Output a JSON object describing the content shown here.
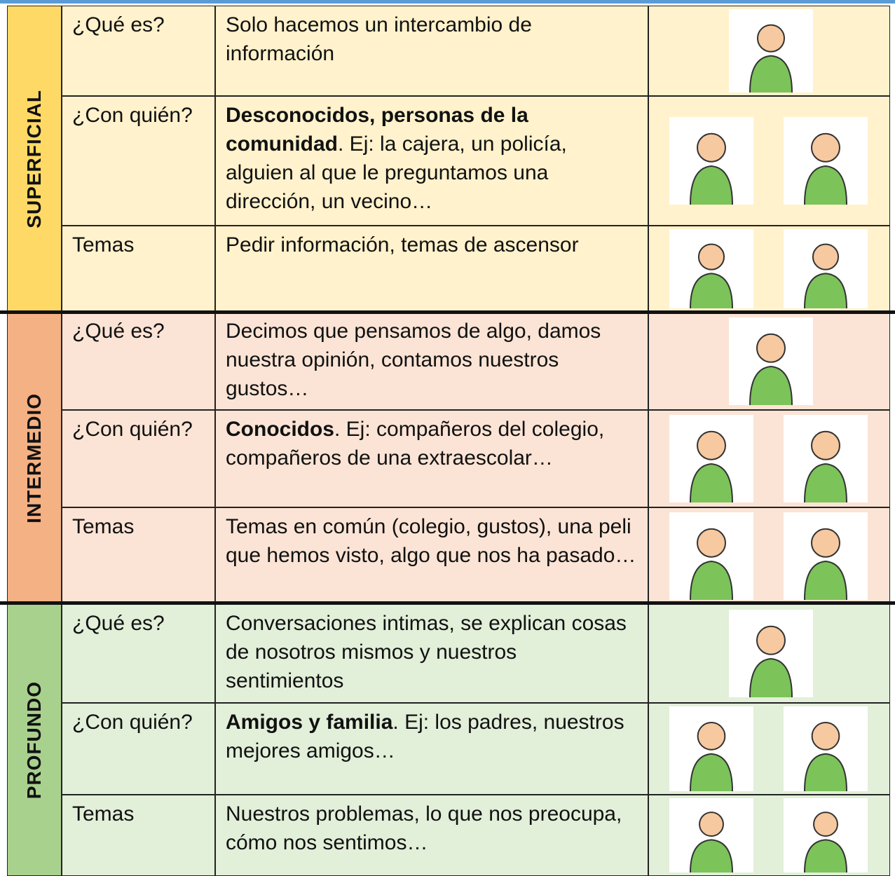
{
  "sections": [
    {
      "label": "SUPERFICIAL",
      "rows": [
        {
          "kind": "¿Qué es?",
          "text": "Solo hacemos un intercambio de información"
        },
        {
          "kind": "¿Con quién?",
          "bold": "Desconocidos, personas de la comunidad",
          "text": ". Ej: la cajera, un policía, alguien al que le preguntamos una dirección, un vecino…"
        },
        {
          "kind": "Temas",
          "text": "Pedir información, temas de ascensor"
        }
      ]
    },
    {
      "label": "INTERMEDIO",
      "rows": [
        {
          "kind": "¿Qué es?",
          "text": "Decimos que pensamos de algo, damos nuestra opinión, contamos nuestros gustos…"
        },
        {
          "kind": "¿Con quién?",
          "bold": "Conocidos",
          "text": ". Ej: compañeros del colegio, compañeros de una extraescolar…"
        },
        {
          "kind": "Temas",
          "text": "Temas en común (colegio, gustos), una peli que hemos visto, algo que nos ha pasado…"
        }
      ]
    },
    {
      "label": "PROFUNDO",
      "rows": [
        {
          "kind": "¿Qué es?",
          "text": "Conversaciones intimas, se explican cosas de nosotros mismos y nuestros sentimientos"
        },
        {
          "kind": "¿Con quién?",
          "bold": "Amigos y familia",
          "text": ". Ej: los padres, nuestros mejores amigos…"
        },
        {
          "kind": "Temas",
          "text": "Nuestros problemas, lo que nos preocupa, cómo nos sentimos…"
        }
      ]
    }
  ]
}
